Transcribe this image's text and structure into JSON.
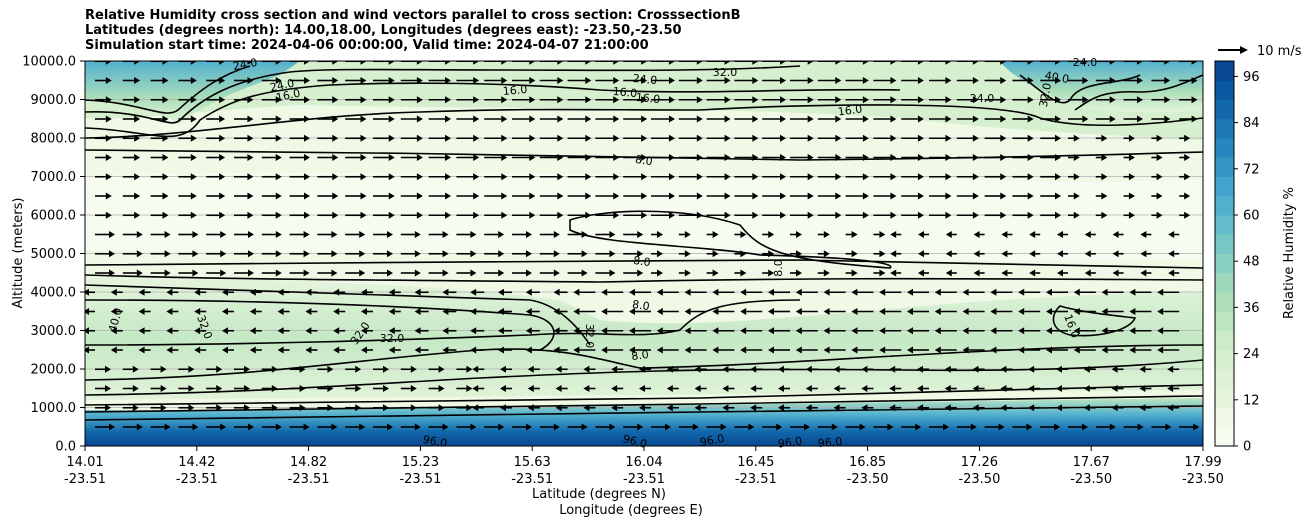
{
  "chart_data": {
    "type": "heatmap",
    "title_lines": [
      "Relative Humidity cross section and wind vectors parallel to cross section: CrosssectionB",
      "Latitudes (degrees north): 14.00,18.00, Longitudes (degrees east): -23.50,-23.50",
      "Simulation start time: 2024-04-06 00:00:00, Valid time: 2024-04-07 21:00:00"
    ],
    "ylabel": "Altitude (meters)",
    "xlabel_line1": "Latitude (degrees N)",
    "xlabel_line2": "Longitude (degrees E)",
    "ylim": [
      0,
      10000
    ],
    "y_ticks": [
      "0.0",
      "1000.0",
      "2000.0",
      "3000.0",
      "4000.0",
      "5000.0",
      "6000.0",
      "7000.0",
      "8000.0",
      "9000.0",
      "10000.0"
    ],
    "x_ticks": [
      {
        "lat": "14.01",
        "lon": "-23.51"
      },
      {
        "lat": "14.42",
        "lon": "-23.51"
      },
      {
        "lat": "14.82",
        "lon": "-23.51"
      },
      {
        "lat": "15.23",
        "lon": "-23.51"
      },
      {
        "lat": "15.63",
        "lon": "-23.51"
      },
      {
        "lat": "16.04",
        "lon": "-23.51"
      },
      {
        "lat": "16.45",
        "lon": "-23.51"
      },
      {
        "lat": "16.85",
        "lon": "-23.50"
      },
      {
        "lat": "17.26",
        "lon": "-23.50"
      },
      {
        "lat": "17.67",
        "lon": "-23.50"
      },
      {
        "lat": "17.99",
        "lon": "-23.50"
      }
    ],
    "colorbar": {
      "label": "Relative Humidity %",
      "range": [
        0,
        100
      ],
      "ticks": [
        "0",
        "12",
        "24",
        "36",
        "48",
        "60",
        "72",
        "84",
        "96"
      ],
      "colors": [
        "#f7fcf0",
        "#eff9e6",
        "#e6f5dd",
        "#dff2d6",
        "#d6efcf",
        "#ccebc6",
        "#bde5bf",
        "#aedfba",
        "#9dd8bd",
        "#8ad0c1",
        "#77c7c5",
        "#64bdca",
        "#52b0cf",
        "#42a3cc",
        "#3595c5",
        "#2886be",
        "#1c77b4",
        "#1268ab",
        "#0a58a0",
        "#084891"
      ]
    },
    "grid": "horizontal",
    "quiver_key": "10 m/s",
    "contour_labels": [
      "8.0",
      "16.0",
      "24.0",
      "32.0",
      "40.0",
      "96.0"
    ],
    "rh_profile_note_values": {
      "surface": 96,
      "lower_layer_3000m": 32,
      "mid_layer_6000m": 8,
      "upper_9000m": 16
    }
  }
}
